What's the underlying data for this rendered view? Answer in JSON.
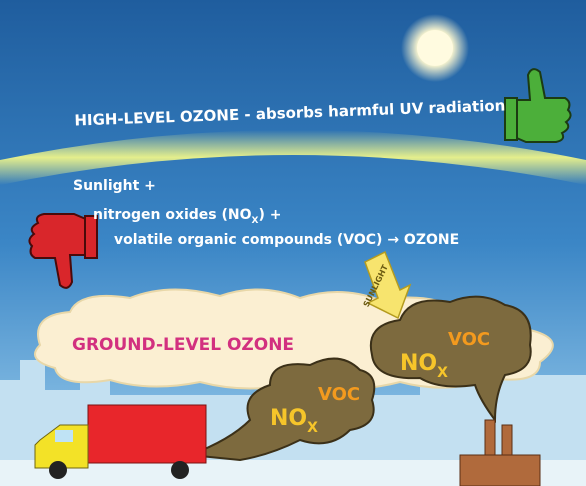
{
  "header": {
    "title": "HIGH-LEVEL OZONE - absorbs harmful UV radiation"
  },
  "reaction": {
    "line1": "Sunlight +",
    "line2": {
      "prefix": "nitrogen oxides (NO",
      "subscript": "X",
      "suffix": ") +"
    },
    "line3": "volatile organic compounds (VOC) → OZONE"
  },
  "arrow_label": "SUNLIGHT",
  "cloud_label": "GROUND-LEVEL OZONE",
  "plumes": [
    {
      "chem": "NO",
      "subscript": "X",
      "voc": "VOC"
    },
    {
      "chem": "NO",
      "subscript": "X",
      "voc": "VOC"
    }
  ]
}
